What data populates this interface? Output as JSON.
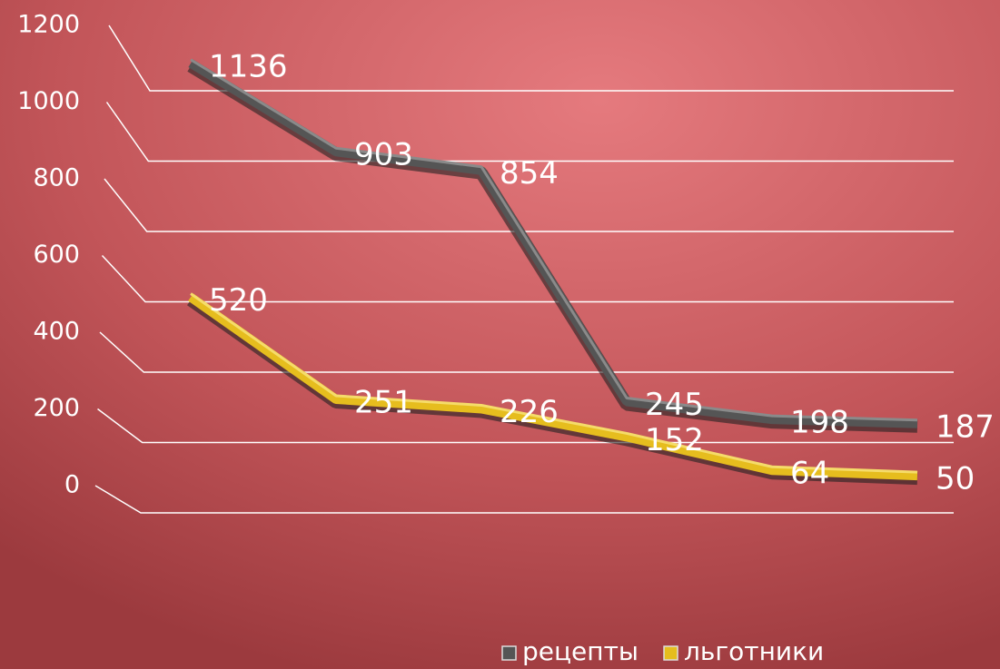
{
  "chart_data": {
    "type": "line",
    "categories": [
      null,
      null,
      null,
      null,
      null,
      null
    ],
    "series": [
      {
        "name": "рецепты",
        "color": "#555555",
        "values": [
          1136,
          903,
          854,
          245,
          198,
          187
        ]
      },
      {
        "name": "льготники",
        "color": "#e6bd1e",
        "values": [
          520,
          251,
          226,
          152,
          64,
          50
        ]
      }
    ],
    "ylim": [
      0,
      1200
    ],
    "yticks": [
      0,
      200,
      400,
      600,
      800,
      1000,
      1200
    ],
    "grid": true,
    "legend": "bottom"
  }
}
